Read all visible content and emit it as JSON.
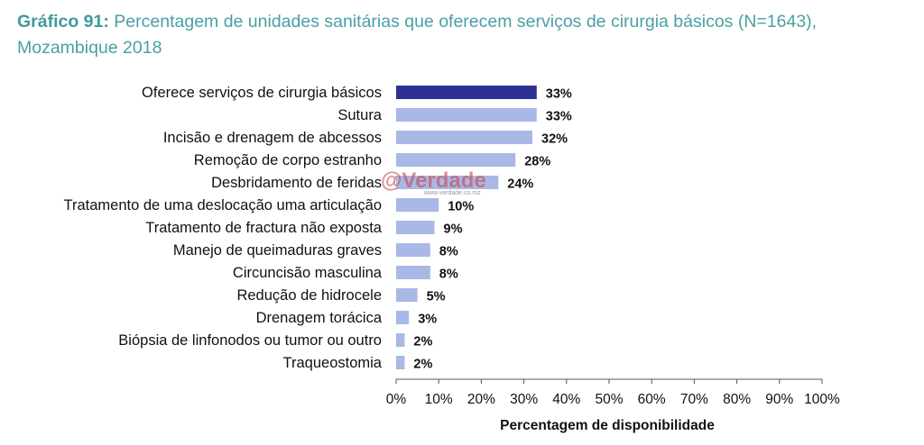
{
  "caption": {
    "prefix": "Gráfico 91:",
    "text": "Percentagem de unidades sanitárias que oferecem serviços de cirurgia básicos (N=1643), Mozambique 2018"
  },
  "watermark": {
    "text": "@Verdade",
    "url": "www.verdade.co.mz"
  },
  "colors": {
    "highlight": "#2e3192",
    "bar": "#a9b8e6",
    "axis": "#555555",
    "caption": "#4aa0a4"
  },
  "chart_data": {
    "type": "bar",
    "orientation": "horizontal",
    "title": "",
    "xlabel": "Percentagem de disponibilidade",
    "ylabel": "",
    "xlim": [
      0,
      100
    ],
    "categories": [
      "Oferece serviços de cirurgia básicos",
      "Sutura",
      "Incisão e drenagem de abcessos",
      "Remoção de corpo estranho",
      "Desbridamento de feridas",
      "Tratamento de uma deslocação uma articulação",
      "Tratamento de fractura não exposta",
      "Manejo de queimaduras graves",
      "Circuncisão masculina",
      "Redução de hidrocele",
      "Drenagem torácica",
      "Biópsia de linfonodos ou tumor ou outro",
      "Traqueostomia"
    ],
    "values": [
      33,
      33,
      32,
      28,
      24,
      10,
      9,
      8,
      8,
      5,
      3,
      2,
      2
    ],
    "value_labels": [
      "33%",
      "33%",
      "32%",
      "28%",
      "24%",
      "10%",
      "9%",
      "8%",
      "8%",
      "5%",
      "3%",
      "2%",
      "2%"
    ],
    "highlight_index": 0,
    "xticks": [
      "0%",
      "10%",
      "20%",
      "30%",
      "40%",
      "50%",
      "60%",
      "70%",
      "80%",
      "90%",
      "100%"
    ]
  }
}
